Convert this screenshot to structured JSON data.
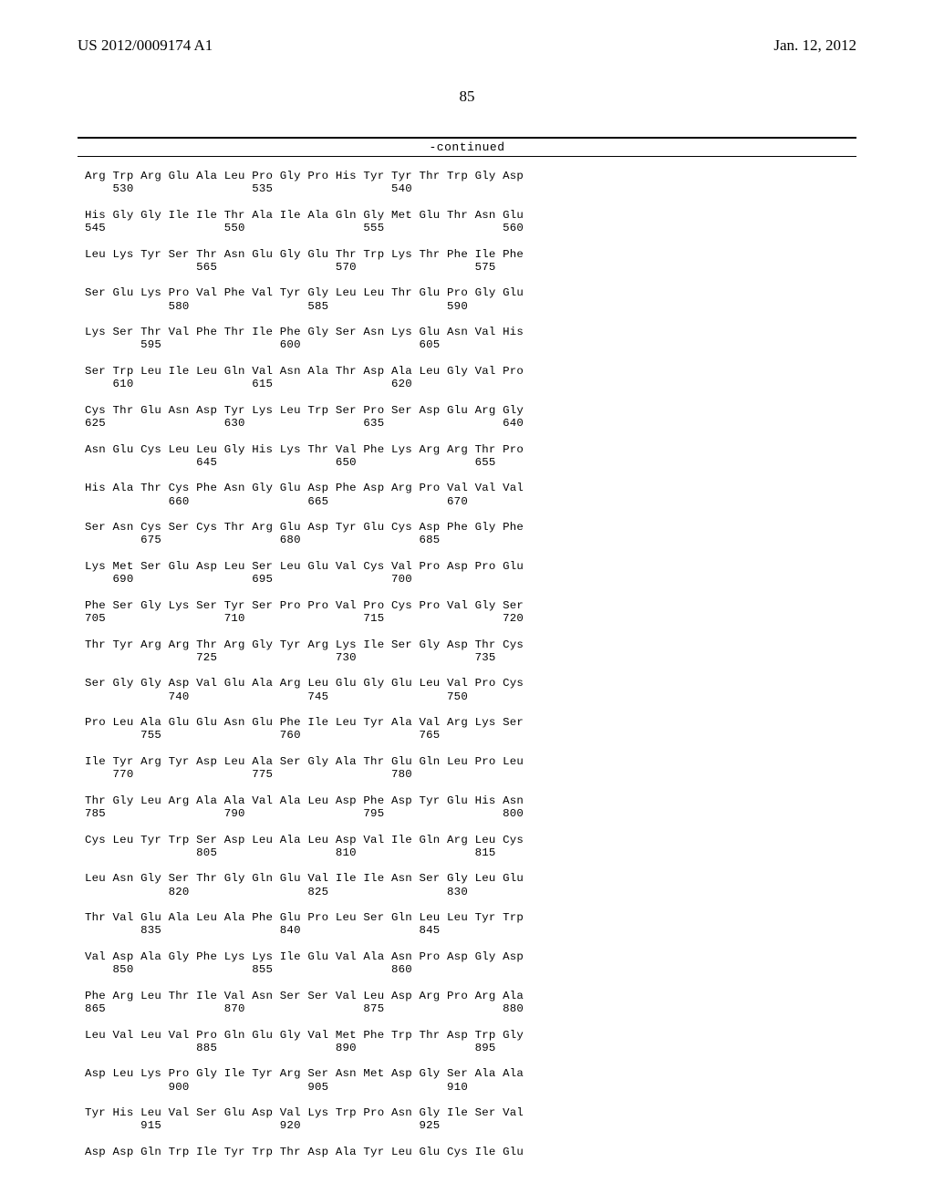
{
  "header": {
    "pubNumber": "US 2012/0009174 A1",
    "pubDate": "Jan. 12, 2012"
  },
  "pageNumber": "85",
  "continuedLabel": "-continued",
  "sequence": {
    "aaLine": "Arg Trp Arg Glu Ala Leu Pro Gly Pro His Tyr Tyr Thr Trp Gly Asp",
    "numLine": "    530                 535                 540",
    "rows": [
      {
        "aa": "His Gly Gly Ile Ile Thr Ala Ile Ala Gln Gly Met Glu Thr Asn Glu",
        "num": "545                 550                 555                 560"
      },
      {
        "aa": "Leu Lys Tyr Ser Thr Asn Glu Gly Glu Thr Trp Lys Thr Phe Ile Phe",
        "num": "                565                 570                 575"
      },
      {
        "aa": "Ser Glu Lys Pro Val Phe Val Tyr Gly Leu Leu Thr Glu Pro Gly Glu",
        "num": "            580                 585                 590"
      },
      {
        "aa": "Lys Ser Thr Val Phe Thr Ile Phe Gly Ser Asn Lys Glu Asn Val His",
        "num": "        595                 600                 605"
      },
      {
        "aa": "Ser Trp Leu Ile Leu Gln Val Asn Ala Thr Asp Ala Leu Gly Val Pro",
        "num": "    610                 615                 620"
      },
      {
        "aa": "Cys Thr Glu Asn Asp Tyr Lys Leu Trp Ser Pro Ser Asp Glu Arg Gly",
        "num": "625                 630                 635                 640"
      },
      {
        "aa": "Asn Glu Cys Leu Leu Gly His Lys Thr Val Phe Lys Arg Arg Thr Pro",
        "num": "                645                 650                 655"
      },
      {
        "aa": "His Ala Thr Cys Phe Asn Gly Glu Asp Phe Asp Arg Pro Val Val Val",
        "num": "            660                 665                 670"
      },
      {
        "aa": "Ser Asn Cys Ser Cys Thr Arg Glu Asp Tyr Glu Cys Asp Phe Gly Phe",
        "num": "        675                 680                 685"
      },
      {
        "aa": "Lys Met Ser Glu Asp Leu Ser Leu Glu Val Cys Val Pro Asp Pro Glu",
        "num": "    690                 695                 700"
      },
      {
        "aa": "Phe Ser Gly Lys Ser Tyr Ser Pro Pro Val Pro Cys Pro Val Gly Ser",
        "num": "705                 710                 715                 720"
      },
      {
        "aa": "Thr Tyr Arg Arg Thr Arg Gly Tyr Arg Lys Ile Ser Gly Asp Thr Cys",
        "num": "                725                 730                 735"
      },
      {
        "aa": "Ser Gly Gly Asp Val Glu Ala Arg Leu Glu Gly Glu Leu Val Pro Cys",
        "num": "            740                 745                 750"
      },
      {
        "aa": "Pro Leu Ala Glu Glu Asn Glu Phe Ile Leu Tyr Ala Val Arg Lys Ser",
        "num": "        755                 760                 765"
      },
      {
        "aa": "Ile Tyr Arg Tyr Asp Leu Ala Ser Gly Ala Thr Glu Gln Leu Pro Leu",
        "num": "    770                 775                 780"
      },
      {
        "aa": "Thr Gly Leu Arg Ala Ala Val Ala Leu Asp Phe Asp Tyr Glu His Asn",
        "num": "785                 790                 795                 800"
      },
      {
        "aa": "Cys Leu Tyr Trp Ser Asp Leu Ala Leu Asp Val Ile Gln Arg Leu Cys",
        "num": "                805                 810                 815"
      },
      {
        "aa": "Leu Asn Gly Ser Thr Gly Gln Glu Val Ile Ile Asn Ser Gly Leu Glu",
        "num": "            820                 825                 830"
      },
      {
        "aa": "Thr Val Glu Ala Leu Ala Phe Glu Pro Leu Ser Gln Leu Leu Tyr Trp",
        "num": "        835                 840                 845"
      },
      {
        "aa": "Val Asp Ala Gly Phe Lys Lys Ile Glu Val Ala Asn Pro Asp Gly Asp",
        "num": "    850                 855                 860"
      },
      {
        "aa": "Phe Arg Leu Thr Ile Val Asn Ser Ser Val Leu Asp Arg Pro Arg Ala",
        "num": "865                 870                 875                 880"
      },
      {
        "aa": "Leu Val Leu Val Pro Gln Glu Gly Val Met Phe Trp Thr Asp Trp Gly",
        "num": "                885                 890                 895"
      },
      {
        "aa": "Asp Leu Lys Pro Gly Ile Tyr Arg Ser Asn Met Asp Gly Ser Ala Ala",
        "num": "            900                 905                 910"
      },
      {
        "aa": "Tyr His Leu Val Ser Glu Asp Val Lys Trp Pro Asn Gly Ile Ser Val",
        "num": "        915                 920                 925"
      },
      {
        "aa": "Asp Asp Gln Trp Ile Tyr Trp Thr Asp Ala Tyr Leu Glu Cys Ile Glu",
        "num": ""
      }
    ]
  }
}
